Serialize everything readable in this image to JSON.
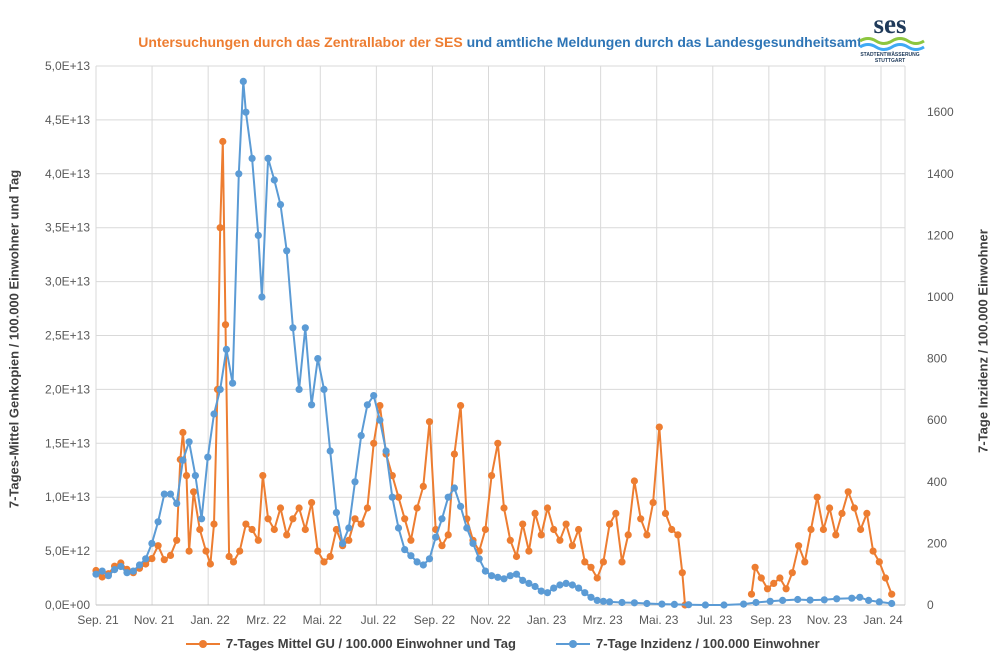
{
  "title": {
    "part1": "Untersuchungen durch das Zentrallabor der SES",
    "part2": "und amtliche Meldungen durch das Landesgesundheitsamt"
  },
  "logo": {
    "text": "ses",
    "subtitle1": "STADTENTWÄSSERUNG",
    "subtitle2": "STUTTGART"
  },
  "colors": {
    "series1": "#ED7D31",
    "series2": "#5B9BD5",
    "grid": "#D9D9D9"
  },
  "chart_data": {
    "type": "line",
    "x_tick_labels": [
      "Sep. 21",
      "Nov. 21",
      "Jan. 22",
      "Mrz. 22",
      "Mai. 22",
      "Jul. 22",
      "Sep. 22",
      "Nov. 22",
      "Jan. 23",
      "Mrz. 23",
      "Mai. 23",
      "Jul. 23",
      "Sep. 23",
      "Nov. 23",
      "Jan. 24"
    ],
    "x_range": [
      "2021-09-01",
      "2024-03-01"
    ],
    "ylabel_left": "7-Tages-Mittel Genkopien / 100.000 Einwohner und Tag",
    "ylabel_right": "7-Tage Inzidenz / 100.000 Einwohner",
    "ylim_left": [
      0,
      50000000000000.0
    ],
    "yticks_left": [
      "0,0E+00",
      "5,0E+12",
      "1,0E+13",
      "1,5E+13",
      "2,0E+13",
      "2,5E+13",
      "3,0E+13",
      "3,5E+13",
      "4,0E+13",
      "4,5E+13",
      "5,0E+13"
    ],
    "ylim_right": [
      0,
      1750
    ],
    "yticks_right": [
      "0",
      "200",
      "400",
      "600",
      "800",
      "1000",
      "1200",
      "1400",
      "1600"
    ],
    "grid": true,
    "legend_position": "bottom",
    "series": [
      {
        "name": "7-Tages Mittel GU / 100.000 Einwohner und Tag",
        "axis": "left",
        "color": "#ED7D31",
        "points": [
          [
            "2021-09-01",
            3200000000000.0
          ],
          [
            "2021-09-08",
            2600000000000.0
          ],
          [
            "2021-09-15",
            2900000000000.0
          ],
          [
            "2021-09-22",
            3600000000000.0
          ],
          [
            "2021-09-29",
            3900000000000.0
          ],
          [
            "2021-10-06",
            3300000000000.0
          ],
          [
            "2021-10-13",
            3000000000000.0
          ],
          [
            "2021-10-20",
            3400000000000.0
          ],
          [
            "2021-10-27",
            3800000000000.0
          ],
          [
            "2021-11-03",
            4300000000000.0
          ],
          [
            "2021-11-10",
            5500000000000.0
          ],
          [
            "2021-11-17",
            4200000000000.0
          ],
          [
            "2021-11-24",
            4600000000000.0
          ],
          [
            "2021-12-01",
            6000000000000.0
          ],
          [
            "2021-12-05",
            13500000000000.0
          ],
          [
            "2021-12-08",
            16000000000000.0
          ],
          [
            "2021-12-12",
            12000000000000.0
          ],
          [
            "2021-12-15",
            5000000000000.0
          ],
          [
            "2021-12-20",
            10500000000000.0
          ],
          [
            "2021-12-27",
            7000000000000.0
          ],
          [
            "2022-01-03",
            5000000000000.0
          ],
          [
            "2022-01-08",
            3800000000000.0
          ],
          [
            "2022-01-12",
            7500000000000.0
          ],
          [
            "2022-01-16",
            20000000000000.0
          ],
          [
            "2022-01-19",
            35000000000000.0
          ],
          [
            "2022-01-22",
            43000000000000.0
          ],
          [
            "2022-01-25",
            26000000000000.0
          ],
          [
            "2022-01-29",
            4500000000000.0
          ],
          [
            "2022-02-03",
            4000000000000.0
          ],
          [
            "2022-02-10",
            5000000000000.0
          ],
          [
            "2022-02-17",
            7500000000000.0
          ],
          [
            "2022-02-24",
            7000000000000.0
          ],
          [
            "2022-03-03",
            6000000000000.0
          ],
          [
            "2022-03-08",
            12000000000000.0
          ],
          [
            "2022-03-14",
            8000000000000.0
          ],
          [
            "2022-03-21",
            7000000000000.0
          ],
          [
            "2022-03-28",
            9000000000000.0
          ],
          [
            "2022-04-04",
            6500000000000.0
          ],
          [
            "2022-04-11",
            8000000000000.0
          ],
          [
            "2022-04-18",
            9000000000000.0
          ],
          [
            "2022-04-25",
            7000000000000.0
          ],
          [
            "2022-05-02",
            9500000000000.0
          ],
          [
            "2022-05-09",
            5000000000000.0
          ],
          [
            "2022-05-16",
            4000000000000.0
          ],
          [
            "2022-05-23",
            4500000000000.0
          ],
          [
            "2022-05-30",
            7000000000000.0
          ],
          [
            "2022-06-06",
            5500000000000.0
          ],
          [
            "2022-06-13",
            6000000000000.0
          ],
          [
            "2022-06-20",
            8000000000000.0
          ],
          [
            "2022-06-27",
            7500000000000.0
          ],
          [
            "2022-07-04",
            9000000000000.0
          ],
          [
            "2022-07-11",
            15000000000000.0
          ],
          [
            "2022-07-18",
            18500000000000.0
          ],
          [
            "2022-07-25",
            14000000000000.0
          ],
          [
            "2022-08-01",
            12000000000000.0
          ],
          [
            "2022-08-08",
            10000000000000.0
          ],
          [
            "2022-08-15",
            8000000000000.0
          ],
          [
            "2022-08-22",
            6000000000000.0
          ],
          [
            "2022-08-29",
            9000000000000.0
          ],
          [
            "2022-09-05",
            11000000000000.0
          ],
          [
            "2022-09-12",
            17000000000000.0
          ],
          [
            "2022-09-19",
            7000000000000.0
          ],
          [
            "2022-09-26",
            5500000000000.0
          ],
          [
            "2022-10-03",
            6500000000000.0
          ],
          [
            "2022-10-10",
            14000000000000.0
          ],
          [
            "2022-10-17",
            18500000000000.0
          ],
          [
            "2022-10-24",
            8000000000000.0
          ],
          [
            "2022-10-31",
            6000000000000.0
          ],
          [
            "2022-11-07",
            5000000000000.0
          ],
          [
            "2022-11-14",
            7000000000000.0
          ],
          [
            "2022-11-21",
            12000000000000.0
          ],
          [
            "2022-11-28",
            15000000000000.0
          ],
          [
            "2022-12-05",
            9000000000000.0
          ],
          [
            "2022-12-12",
            6000000000000.0
          ],
          [
            "2022-12-19",
            4500000000000.0
          ],
          [
            "2022-12-26",
            7500000000000.0
          ],
          [
            "2023-01-02",
            5000000000000.0
          ],
          [
            "2023-01-09",
            8500000000000.0
          ],
          [
            "2023-01-16",
            6500000000000.0
          ],
          [
            "2023-01-23",
            9000000000000.0
          ],
          [
            "2023-01-30",
            7000000000000.0
          ],
          [
            "2023-02-06",
            6000000000000.0
          ],
          [
            "2023-02-13",
            7500000000000.0
          ],
          [
            "2023-02-20",
            5500000000000.0
          ],
          [
            "2023-02-27",
            7000000000000.0
          ],
          [
            "2023-03-06",
            4000000000000.0
          ],
          [
            "2023-03-13",
            3500000000000.0
          ],
          [
            "2023-03-20",
            2500000000000.0
          ],
          [
            "2023-03-27",
            4000000000000.0
          ],
          [
            "2023-04-03",
            7500000000000.0
          ],
          [
            "2023-04-10",
            8500000000000.0
          ],
          [
            "2023-04-17",
            4000000000000.0
          ],
          [
            "2023-04-24",
            6500000000000.0
          ],
          [
            "2023-05-01",
            11500000000000.0
          ],
          [
            "2023-05-08",
            8000000000000.0
          ],
          [
            "2023-05-15",
            6500000000000.0
          ],
          [
            "2023-05-22",
            9500000000000.0
          ],
          [
            "2023-05-29",
            16500000000000.0
          ],
          [
            "2023-06-05",
            8500000000000.0
          ],
          [
            "2023-06-12",
            7000000000000.0
          ],
          [
            "2023-06-19",
            6500000000000.0
          ],
          [
            "2023-06-24",
            3000000000000.0
          ],
          [
            "2023-06-27",
            0
          ]
        ]
      },
      {
        "name": "7-Tages Mittel GU / 100.000 Einwohner und Tag",
        "axis": "left",
        "color": "#ED7D31",
        "points": [
          [
            "2023-09-10",
            1000000000000.0
          ],
          [
            "2023-09-14",
            3500000000000.0
          ],
          [
            "2023-09-21",
            2500000000000.0
          ],
          [
            "2023-09-28",
            1500000000000.0
          ],
          [
            "2023-10-05",
            2000000000000.0
          ],
          [
            "2023-10-12",
            2500000000000.0
          ],
          [
            "2023-10-19",
            1500000000000.0
          ],
          [
            "2023-10-26",
            3000000000000.0
          ],
          [
            "2023-11-02",
            5500000000000.0
          ],
          [
            "2023-11-09",
            4000000000000.0
          ],
          [
            "2023-11-16",
            7000000000000.0
          ],
          [
            "2023-11-23",
            10000000000000.0
          ],
          [
            "2023-11-30",
            7000000000000.0
          ],
          [
            "2023-12-07",
            9000000000000.0
          ],
          [
            "2023-12-14",
            6500000000000.0
          ],
          [
            "2023-12-21",
            8500000000000.0
          ],
          [
            "2023-12-28",
            10500000000000.0
          ],
          [
            "2024-01-04",
            9000000000000.0
          ],
          [
            "2024-01-11",
            7000000000000.0
          ],
          [
            "2024-01-18",
            8500000000000.0
          ],
          [
            "2024-01-25",
            5000000000000.0
          ],
          [
            "2024-02-01",
            4000000000000.0
          ],
          [
            "2024-02-08",
            2500000000000.0
          ],
          [
            "2024-02-15",
            1000000000000.0
          ]
        ]
      },
      {
        "name": "7-Tage Inzidenz / 100.000 Einwohner",
        "axis": "right",
        "color": "#5B9BD5",
        "points": [
          [
            "2021-09-01",
            100
          ],
          [
            "2021-09-08",
            110
          ],
          [
            "2021-09-15",
            95
          ],
          [
            "2021-09-22",
            115
          ],
          [
            "2021-09-29",
            125
          ],
          [
            "2021-10-06",
            105
          ],
          [
            "2021-10-13",
            110
          ],
          [
            "2021-10-20",
            130
          ],
          [
            "2021-10-27",
            150
          ],
          [
            "2021-11-03",
            200
          ],
          [
            "2021-11-10",
            270
          ],
          [
            "2021-11-17",
            360
          ],
          [
            "2021-11-24",
            360
          ],
          [
            "2021-12-01",
            330
          ],
          [
            "2021-12-08",
            470
          ],
          [
            "2021-12-15",
            530
          ],
          [
            "2021-12-22",
            420
          ],
          [
            "2021-12-29",
            280
          ],
          [
            "2022-01-05",
            480
          ],
          [
            "2022-01-12",
            620
          ],
          [
            "2022-01-19",
            700
          ],
          [
            "2022-01-26",
            830
          ],
          [
            "2022-02-02",
            720
          ],
          [
            "2022-02-09",
            1400
          ],
          [
            "2022-02-14",
            1700
          ],
          [
            "2022-02-17",
            1600
          ],
          [
            "2022-02-24",
            1450
          ],
          [
            "2022-03-03",
            1200
          ],
          [
            "2022-03-07",
            1000
          ],
          [
            "2022-03-14",
            1450
          ],
          [
            "2022-03-21",
            1380
          ],
          [
            "2022-03-28",
            1300
          ],
          [
            "2022-04-04",
            1150
          ],
          [
            "2022-04-11",
            900
          ],
          [
            "2022-04-18",
            700
          ],
          [
            "2022-04-25",
            900
          ],
          [
            "2022-05-02",
            650
          ],
          [
            "2022-05-09",
            800
          ],
          [
            "2022-05-16",
            700
          ],
          [
            "2022-05-23",
            500
          ],
          [
            "2022-05-30",
            300
          ],
          [
            "2022-06-06",
            200
          ],
          [
            "2022-06-13",
            250
          ],
          [
            "2022-06-20",
            400
          ],
          [
            "2022-06-27",
            550
          ],
          [
            "2022-07-04",
            650
          ],
          [
            "2022-07-11",
            680
          ],
          [
            "2022-07-18",
            600
          ],
          [
            "2022-07-25",
            500
          ],
          [
            "2022-08-01",
            350
          ],
          [
            "2022-08-08",
            250
          ],
          [
            "2022-08-15",
            180
          ],
          [
            "2022-08-22",
            160
          ],
          [
            "2022-08-29",
            140
          ],
          [
            "2022-09-05",
            130
          ],
          [
            "2022-09-12",
            150
          ],
          [
            "2022-09-19",
            220
          ],
          [
            "2022-09-26",
            280
          ],
          [
            "2022-10-03",
            350
          ],
          [
            "2022-10-10",
            380
          ],
          [
            "2022-10-17",
            320
          ],
          [
            "2022-10-24",
            250
          ],
          [
            "2022-10-31",
            200
          ],
          [
            "2022-11-07",
            150
          ],
          [
            "2022-11-14",
            110
          ],
          [
            "2022-11-21",
            95
          ],
          [
            "2022-11-28",
            90
          ],
          [
            "2022-12-05",
            85
          ],
          [
            "2022-12-12",
            95
          ],
          [
            "2022-12-19",
            100
          ],
          [
            "2022-12-26",
            80
          ],
          [
            "2023-01-02",
            70
          ],
          [
            "2023-01-09",
            60
          ],
          [
            "2023-01-16",
            45
          ],
          [
            "2023-01-23",
            40
          ],
          [
            "2023-01-30",
            55
          ],
          [
            "2023-02-06",
            65
          ],
          [
            "2023-02-13",
            70
          ],
          [
            "2023-02-20",
            65
          ],
          [
            "2023-02-27",
            55
          ],
          [
            "2023-03-06",
            40
          ],
          [
            "2023-03-13",
            25
          ],
          [
            "2023-03-20",
            15
          ],
          [
            "2023-03-27",
            12
          ],
          [
            "2023-04-03",
            10
          ],
          [
            "2023-04-17",
            8
          ],
          [
            "2023-05-01",
            7
          ],
          [
            "2023-05-15",
            5
          ],
          [
            "2023-06-01",
            3
          ],
          [
            "2023-06-15",
            2
          ],
          [
            "2023-07-01",
            1
          ],
          [
            "2023-07-20",
            0
          ],
          [
            "2023-08-10",
            0
          ],
          [
            "2023-09-01",
            3
          ],
          [
            "2023-09-15",
            8
          ],
          [
            "2023-10-01",
            12
          ],
          [
            "2023-10-15",
            15
          ],
          [
            "2023-11-01",
            18
          ],
          [
            "2023-11-15",
            16
          ],
          [
            "2023-12-01",
            17
          ],
          [
            "2023-12-15",
            20
          ],
          [
            "2024-01-01",
            22
          ],
          [
            "2024-01-10",
            25
          ],
          [
            "2024-01-20",
            15
          ],
          [
            "2024-02-01",
            10
          ],
          [
            "2024-02-15",
            5
          ]
        ]
      }
    ]
  },
  "legend": {
    "item1": "7-Tages Mittel GU / 100.000 Einwohner und Tag",
    "item2": "7-Tage Inzidenz / 100.000 Einwohner"
  }
}
